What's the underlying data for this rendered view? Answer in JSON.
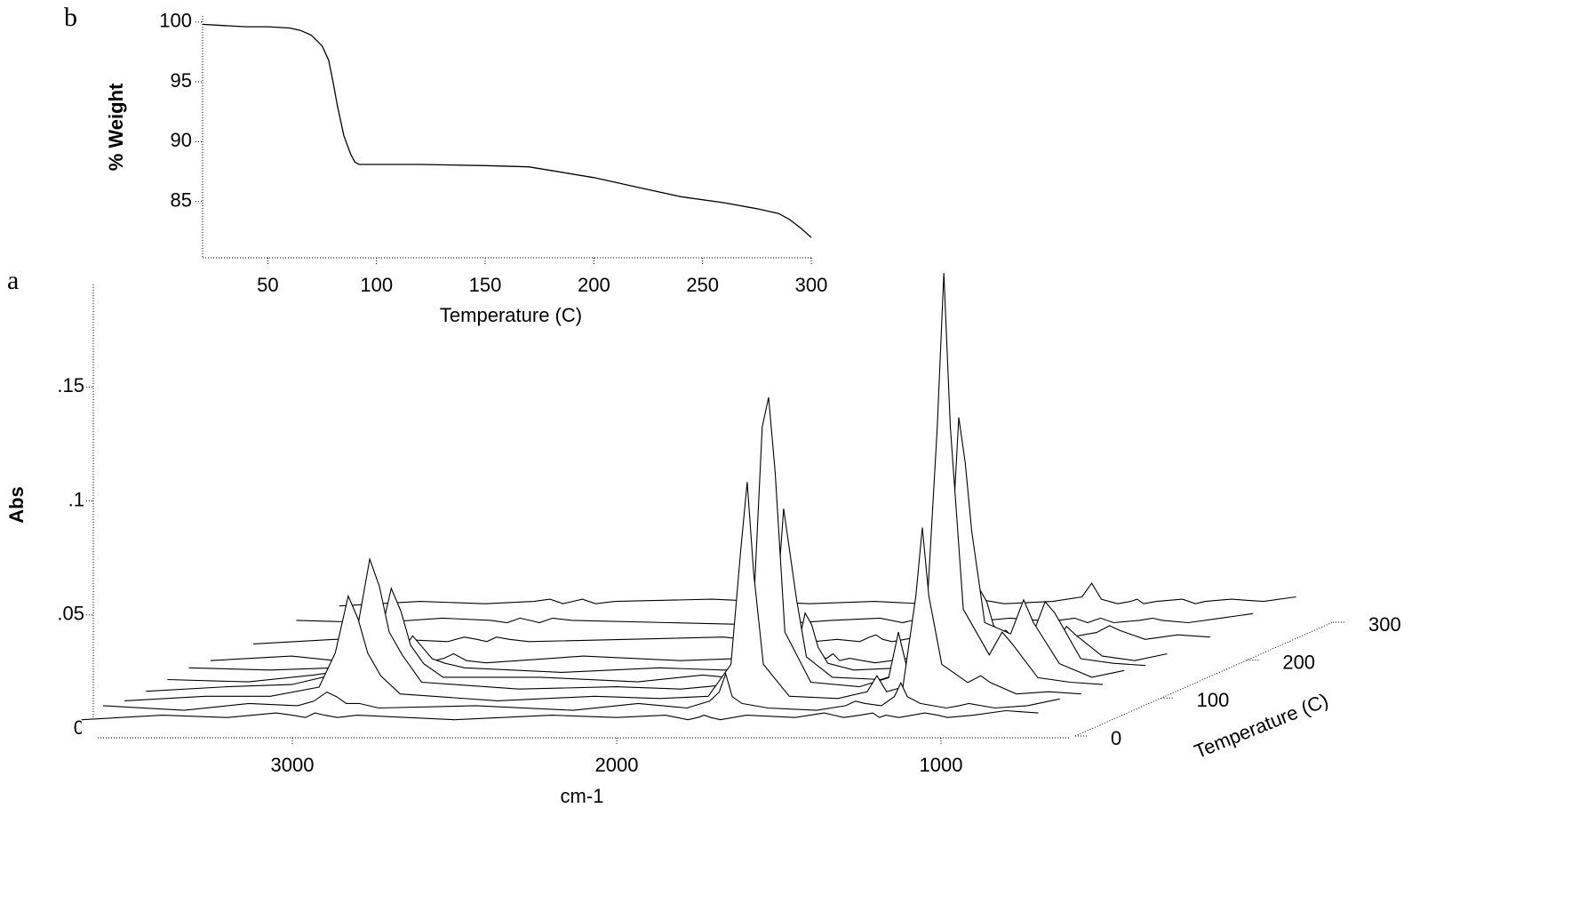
{
  "chart_data": [
    {
      "type": "line",
      "panel": "b",
      "xlabel": "Temperature (C)",
      "ylabel": "% Weight",
      "color": "#000000",
      "x": [
        20,
        30,
        40,
        50,
        60,
        65,
        70,
        75,
        78,
        80,
        82,
        85,
        88,
        90,
        92,
        95,
        100,
        120,
        150,
        170,
        180,
        200,
        220,
        240,
        260,
        275,
        285,
        290,
        295,
        300
      ],
      "values": [
        99.8,
        99.7,
        99.6,
        99.6,
        99.5,
        99.3,
        98.9,
        98,
        96.8,
        95,
        93,
        90.5,
        89,
        88.3,
        88.1,
        88.1,
        88.1,
        88.1,
        88.0,
        87.9,
        87.6,
        87.0,
        86.2,
        85.4,
        84.9,
        84.4,
        84.0,
        83.5,
        82.8,
        82.0
      ],
      "xlim": [
        20,
        300
      ],
      "xticks": [
        50,
        100,
        150,
        200,
        250,
        300
      ],
      "ylim": [
        80.3,
        100.5
      ],
      "yticks": [
        85,
        90,
        95,
        100
      ]
    },
    {
      "type": "waterfall",
      "panel": "a",
      "xlabel": "cm-1",
      "ylabel": "Abs",
      "zlabel": "Temperature (C)",
      "color": "#000000",
      "x": [
        3650,
        3400,
        3200,
        3050,
        3000,
        2960,
        2930,
        2900,
        2860,
        2800,
        2500,
        2200,
        2000,
        1850,
        1780,
        1750,
        1730,
        1710,
        1680,
        1600,
        1450,
        1360,
        1330,
        1300,
        1250,
        1210,
        1190,
        1170,
        1130,
        1050,
        1010,
        980,
        900,
        800,
        700
      ],
      "xlim": [
        3600,
        600
      ],
      "xticks": [
        3000,
        2000,
        1000
      ],
      "ylim": [
        0,
        0.195
      ],
      "yticks": [
        0,
        {
          "value": 0.05,
          "label": ".05"
        },
        {
          "value": 0.1,
          "label": ".1"
        },
        {
          "value": 0.15,
          "label": ".15"
        }
      ],
      "zlim": [
        0,
        300
      ],
      "zticks": [
        0,
        100,
        200,
        300
      ],
      "series": [
        {
          "z": 0,
          "values": [
            0.004,
            0.006,
            0.005,
            0.007,
            0.006,
            0.005,
            0.007,
            0.006,
            0.005,
            0.006,
            0.004,
            0.006,
            0.005,
            0.006,
            0.004,
            0.005,
            0.006,
            0.005,
            0.004,
            0.006,
            0.005,
            0.007,
            0.006,
            0.005,
            0.006,
            0.007,
            0.005,
            0.006,
            0.005,
            0.007,
            0.006,
            0.005,
            0.006,
            0.008,
            0.007
          ]
        },
        {
          "z": 25,
          "values": [
            0.006,
            0.004,
            0.007,
            0.006,
            0.008,
            0.012,
            0.01,
            0.007,
            0.007,
            0.005,
            0.006,
            0.004,
            0.007,
            0.005,
            0.008,
            0.012,
            0.02,
            0.01,
            0.007,
            0.005,
            0.004,
            0.006,
            0.008,
            0.007,
            0.006,
            0.01,
            0.016,
            0.01,
            0.007,
            0.005,
            0.006,
            0.007,
            0.005,
            0.006,
            0.009
          ]
        },
        {
          "z": 50,
          "values": [
            0.004,
            0.006,
            0.006,
            0.01,
            0.025,
            0.05,
            0.04,
            0.025,
            0.015,
            0.007,
            0.004,
            0.006,
            0.005,
            0.006,
            0.02,
            0.07,
            0.1,
            0.06,
            0.02,
            0.006,
            0.005,
            0.008,
            0.015,
            0.008,
            0.01,
            0.05,
            0.08,
            0.05,
            0.02,
            0.012,
            0.015,
            0.012,
            0.007,
            0.008,
            0.007
          ]
        },
        {
          "z": 75,
          "values": [
            0.004,
            0.006,
            0.007,
            0.012,
            0.03,
            0.062,
            0.05,
            0.03,
            0.02,
            0.008,
            0.005,
            0.006,
            0.005,
            0.007,
            0.03,
            0.12,
            0.133,
            0.1,
            0.03,
            0.008,
            0.006,
            0.01,
            0.03,
            0.012,
            0.02,
            0.12,
            0.1875,
            0.12,
            0.04,
            0.02,
            0.03,
            0.025,
            0.01,
            0.008,
            0.007
          ]
        },
        {
          "z": 100,
          "values": [
            0.005,
            0.004,
            0.007,
            0.01,
            0.02,
            0.045,
            0.035,
            0.02,
            0.012,
            0.006,
            0.006,
            0.004,
            0.007,
            0.005,
            0.02,
            0.08,
            0.06,
            0.04,
            0.015,
            0.006,
            0.005,
            0.009,
            0.02,
            0.01,
            0.015,
            0.12,
            0.1,
            0.07,
            0.03,
            0.025,
            0.04,
            0.03,
            0.012,
            0.006,
            0.009
          ]
        },
        {
          "z": 125,
          "values": [
            0.006,
            0.005,
            0.006,
            0.008,
            0.012,
            0.02,
            0.015,
            0.01,
            0.008,
            0.006,
            0.004,
            0.006,
            0.005,
            0.006,
            0.01,
            0.03,
            0.025,
            0.015,
            0.008,
            0.005,
            0.006,
            0.007,
            0.01,
            0.008,
            0.01,
            0.04,
            0.035,
            0.025,
            0.015,
            0.02,
            0.035,
            0.03,
            0.01,
            0.008,
            0.007
          ]
        },
        {
          "z": 150,
          "values": [
            0.005,
            0.007,
            0.004,
            0.006,
            0.007,
            0.005,
            0.006,
            0.008,
            0.005,
            0.004,
            0.007,
            0.005,
            0.006,
            0.004,
            0.007,
            0.006,
            0.008,
            0.005,
            0.006,
            0.004,
            0.007,
            0.006,
            0.009,
            0.005,
            0.006,
            0.01,
            0.012,
            0.008,
            0.007,
            0.012,
            0.02,
            0.016,
            0.007,
            0.005,
            0.008
          ]
        },
        {
          "z": 200,
          "values": [
            0.004,
            0.006,
            0.006,
            0.005,
            0.007,
            0.006,
            0.005,
            0.007,
            0.006,
            0.005,
            0.006,
            0.007,
            0.004,
            0.006,
            0.005,
            0.007,
            0.008,
            0.006,
            0.005,
            0.007,
            0.006,
            0.008,
            0.01,
            0.006,
            0.005,
            0.007,
            0.008,
            0.006,
            0.007,
            0.009,
            0.012,
            0.01,
            0.006,
            0.008,
            0.007
          ]
        },
        {
          "z": 250,
          "values": [
            0.006,
            0.005,
            0.007,
            0.006,
            0.005,
            0.007,
            0.006,
            0.005,
            0.007,
            0.006,
            0.005,
            0.004,
            0.006,
            0.007,
            0.005,
            0.006,
            0.007,
            0.005,
            0.006,
            0.005,
            0.007,
            0.006,
            0.012,
            0.006,
            0.007,
            0.005,
            0.006,
            0.007,
            0.005,
            0.006,
            0.007,
            0.006,
            0.005,
            0.007,
            0.009
          ]
        },
        {
          "z": 300,
          "values": [
            0.004,
            0.006,
            0.005,
            0.006,
            0.007,
            0.005,
            0.006,
            0.007,
            0.005,
            0.006,
            0.007,
            0.005,
            0.006,
            0.005,
            0.007,
            0.006,
            0.005,
            0.006,
            0.007,
            0.005,
            0.006,
            0.008,
            0.014,
            0.007,
            0.005,
            0.006,
            0.007,
            0.005,
            0.006,
            0.007,
            0.005,
            0.006,
            0.007,
            0.006,
            0.008
          ]
        }
      ]
    }
  ]
}
